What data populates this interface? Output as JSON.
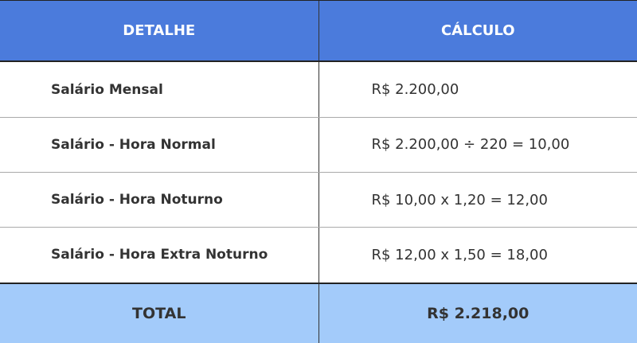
{
  "table": {
    "headers": [
      "DETALHE",
      "CÁLCULO"
    ],
    "rows": [
      {
        "detail": "Salário Mensal",
        "calc": "R$ 2.200,00"
      },
      {
        "detail": "Salário - Hora Normal",
        "calc": "R$ 2.200,00 ÷ 220 = 10,00"
      },
      {
        "detail": "Salário - Hora Noturno",
        "calc": "R$ 10,00 x 1,20 = 12,00"
      },
      {
        "detail": "Salário - Hora Extra Noturno",
        "calc": "R$ 12,00 x 1,50 = 18,00"
      }
    ],
    "total": {
      "label": "TOTAL",
      "value": "R$ 2.218,00"
    }
  },
  "colors": {
    "header": "#4b7bdc",
    "total": "#a3cbfa"
  }
}
